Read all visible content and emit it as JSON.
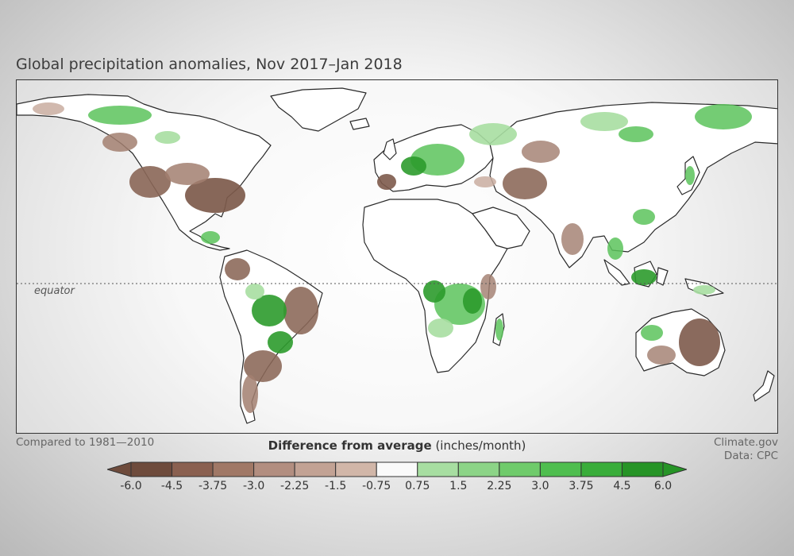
{
  "title": "Global precipitation anomalies, Nov 2017–Jan 2018",
  "equator_label": "equator",
  "baseline_note": "Compared to 1981—2010",
  "legend": {
    "title_bold": "Difference from average",
    "title_units": "(inches/month)",
    "tick_labels": [
      "-6.0",
      "-4.5",
      "-3.75",
      "-3.0",
      "-2.25",
      "-1.5",
      "-0.75",
      "0.75",
      "1.5",
      "2.25",
      "3.0",
      "3.75",
      "4.5",
      "6.0"
    ],
    "colors": [
      "#6e4b3c",
      "#8a6050",
      "#a07866",
      "#b28e80",
      "#c2a294",
      "#d1b6a8",
      "#fafafa",
      "#a7dea1",
      "#8cd487",
      "#6fcb6b",
      "#4fbe4f",
      "#39ad3a",
      "#269426"
    ]
  },
  "credit": {
    "line1": "Climate.gov",
    "line2": "Data: CPC"
  },
  "colors": {
    "land": "#ffffff",
    "coastline": "#2a2a2a",
    "dry_strong": "#7d5a4b",
    "dry_mid": "#a27f70",
    "dry_light": "#c9ada0",
    "wet_light": "#a7dea1",
    "wet_mid": "#5cc35c",
    "wet_strong": "#2c9b2c"
  }
}
